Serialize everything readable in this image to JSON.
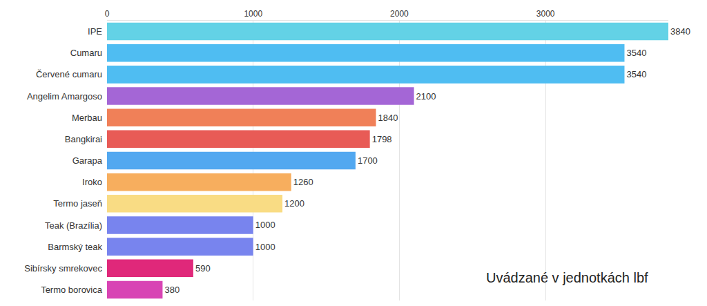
{
  "chart_data": {
    "type": "bar",
    "orientation": "horizontal",
    "categories": [
      "IPE",
      "Cumaru",
      "Červené cumaru",
      "Angelim Amargoso",
      "Merbau",
      "Bangkirai",
      "Garapa",
      "Iroko",
      "Termo jaseň",
      "Teak (Brazília)",
      "Barmský teak",
      "Sibírsky smrekovec",
      "Termo borovica"
    ],
    "values": [
      3840,
      3540,
      3540,
      2100,
      1840,
      1798,
      1700,
      1260,
      1200,
      1000,
      1000,
      590,
      380
    ],
    "colors": [
      "#63d2e6",
      "#4fbdf2",
      "#4fbdf2",
      "#a466d6",
      "#f08058",
      "#e85b56",
      "#52a8f0",
      "#f7ae5e",
      "#f9dc84",
      "#7884ee",
      "#7884ee",
      "#e0287a",
      "#d844b4"
    ],
    "xlim": [
      0,
      3840
    ],
    "xticks": [
      0,
      1000,
      2000,
      3000
    ],
    "grid": true,
    "data_labels": true,
    "annotations": [
      {
        "text": "Uvádzané v jednotkách lbf"
      }
    ]
  }
}
